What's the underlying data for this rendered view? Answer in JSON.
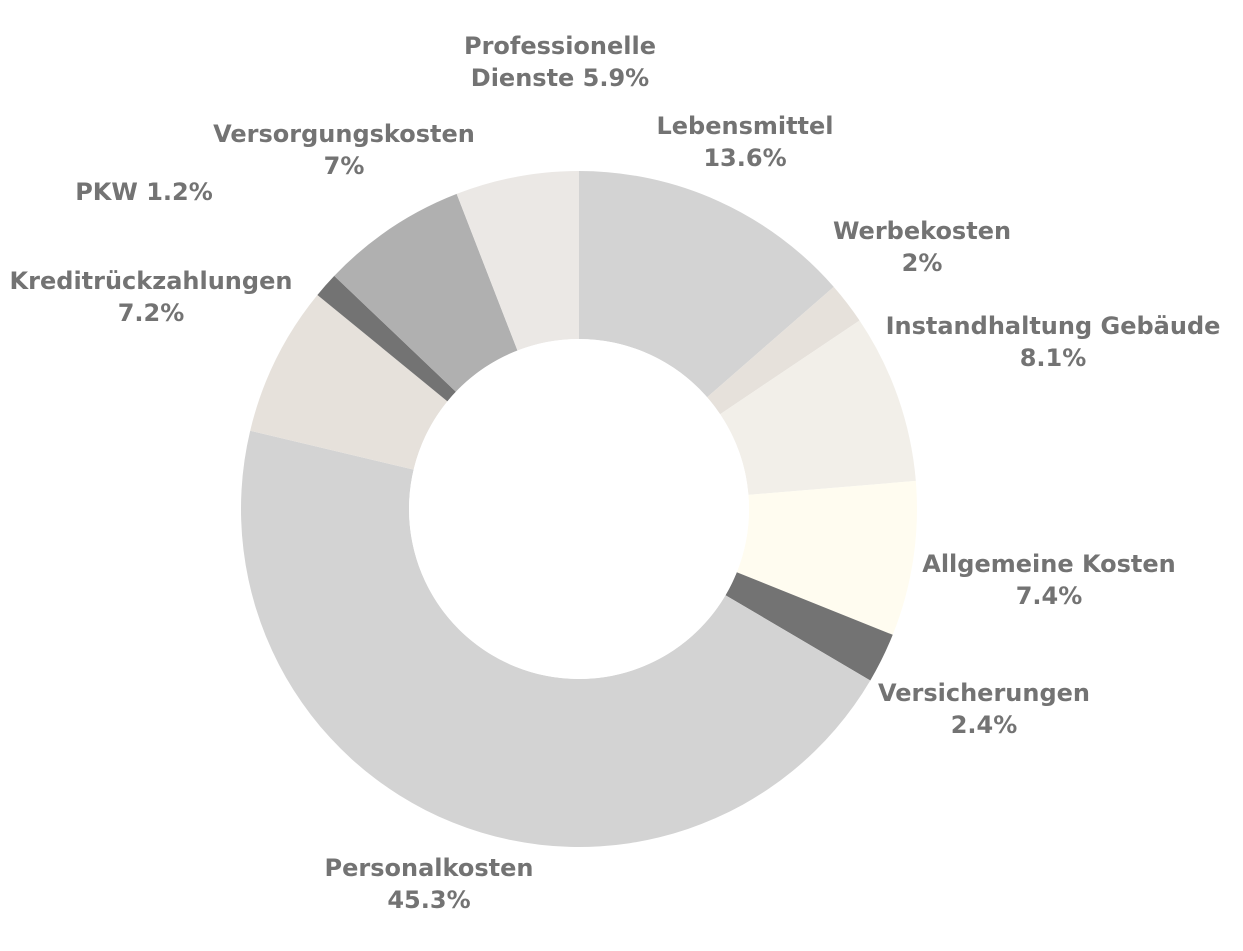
{
  "chart_data": {
    "type": "pie",
    "variant": "donut",
    "title": "",
    "start_angle_deg": 0,
    "direction": "clockwise",
    "slices": [
      {
        "label": "Lebensmittel",
        "value": 13.6,
        "percent_text": "13.6%",
        "color": "#d3d3d3",
        "label_lines": [
          "Lebensmittel",
          "13.6%"
        ]
      },
      {
        "label": "Werbekosten",
        "value": 2.0,
        "percent_text": "2%",
        "color": "#e6e1db",
        "label_lines": [
          "Werbekosten",
          "2%"
        ]
      },
      {
        "label": "Instandhaltung Gebäude",
        "value": 8.1,
        "percent_text": "8.1%",
        "color": "#f2efe9",
        "label_lines": [
          "Instandhaltung Gebäude",
          "8.1%"
        ]
      },
      {
        "label": "Allgemeine Kosten",
        "value": 7.4,
        "percent_text": "7.4%",
        "color": "#fffcf0",
        "label_lines": [
          "Allgemeine Kosten",
          "7.4%"
        ]
      },
      {
        "label": "Versicherungen",
        "value": 2.4,
        "percent_text": "2.4%",
        "color": "#737373",
        "label_lines": [
          "Versicherungen",
          "2.4%"
        ]
      },
      {
        "label": "Personalkosten",
        "value": 45.3,
        "percent_text": "45.3%",
        "color": "#d3d3d3",
        "label_lines": [
          "Personalkosten",
          "45.3%"
        ]
      },
      {
        "label": "Kreditrückzahlungen",
        "value": 7.2,
        "percent_text": "7.2%",
        "color": "#e6e1db",
        "label_lines": [
          "Kreditrückzahlungen",
          "7.2%"
        ]
      },
      {
        "label": "PKW",
        "value": 1.2,
        "percent_text": "1.2%",
        "color": "#737373",
        "label_lines": [
          "PKW 1.2%"
        ]
      },
      {
        "label": "Versorgungskosten",
        "value": 7.0,
        "percent_text": "7%",
        "color": "#b0b0b0",
        "label_lines": [
          "Versorgungskosten",
          "7%"
        ]
      },
      {
        "label": "Professionelle Dienste",
        "value": 5.9,
        "percent_text": "5.9%",
        "color": "#ebe8e5",
        "label_lines": [
          "Professionelle",
          "Dienste 5.9%"
        ]
      }
    ],
    "label_color": "#737373",
    "legend": "none"
  }
}
